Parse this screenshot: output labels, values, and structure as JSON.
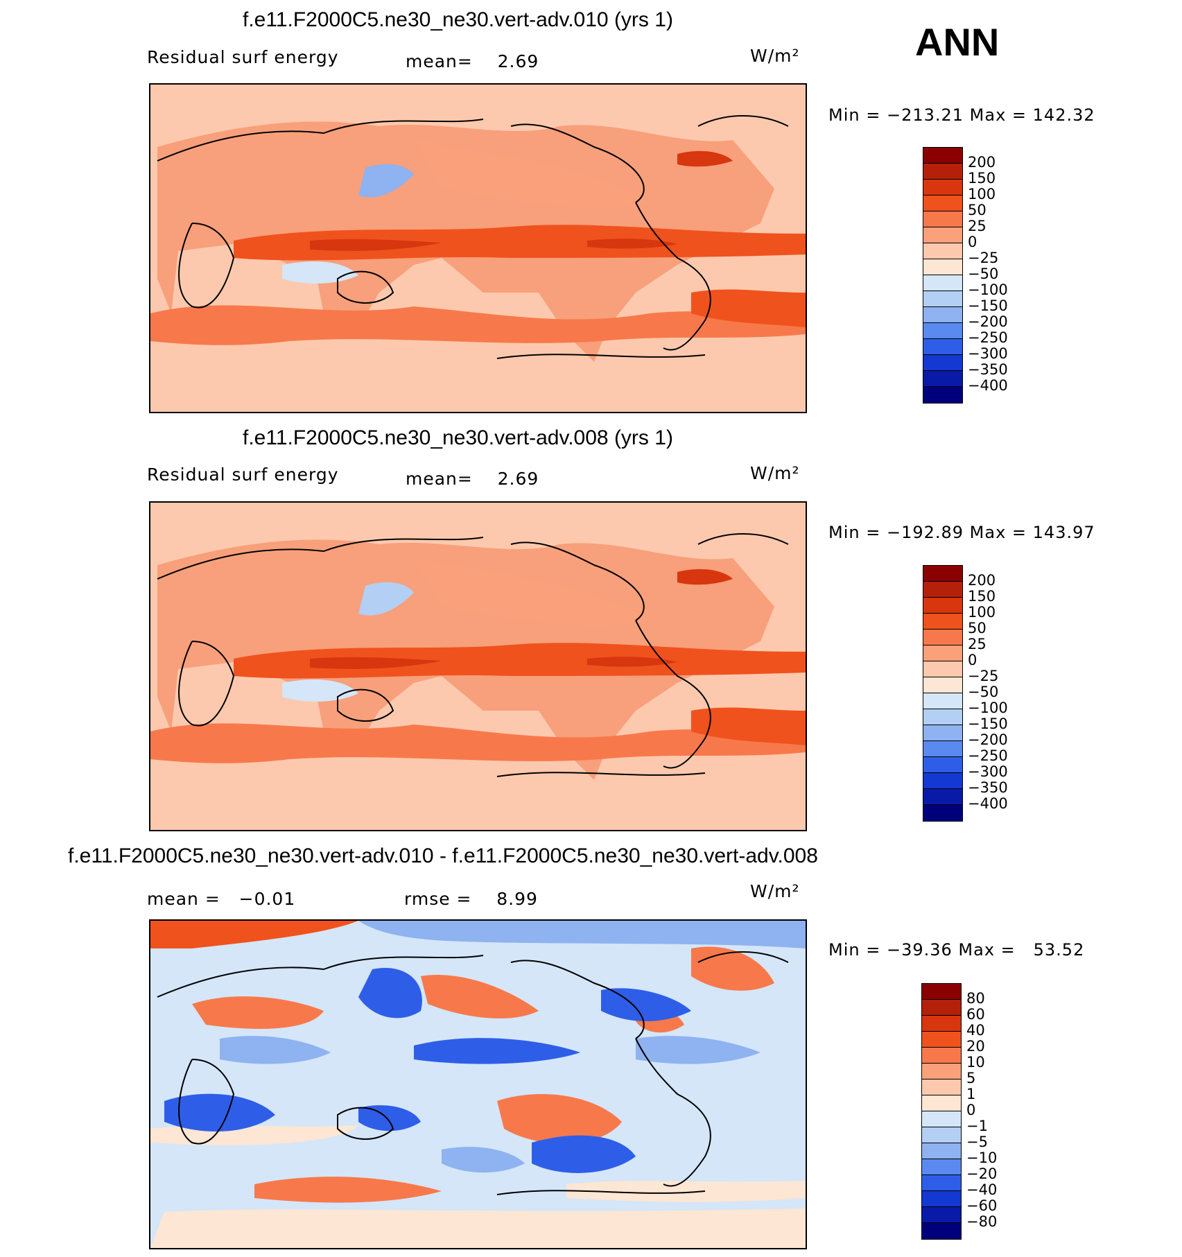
{
  "season": "ANN",
  "panels": [
    {
      "title": "f.e11.F2000C5.ne30_ne30.vert-adv.010 (yrs 1)",
      "label_left": "Residual surf energy",
      "stat_text": "mean=    2.69",
      "units": "W/m²",
      "minmax": "Min = −213.21 Max = 142.32",
      "colorbar": {
        "ticks": [
          "200",
          "150",
          "100",
          "50",
          "25",
          "0",
          "−25",
          "−50",
          "−100",
          "−150",
          "−200",
          "−250",
          "−300",
          "−350",
          "−400"
        ],
        "colors": [
          "#8b0000",
          "#b5200b",
          "#d8360f",
          "#f0521d",
          "#f7794b",
          "#faa07b",
          "#fcc9ae",
          "#fde6d3",
          "#d4e6f8",
          "#b3cff4",
          "#8fb2f0",
          "#5a8af0",
          "#2e5ee8",
          "#1438d2",
          "#0a1aa8",
          "#00007d"
        ]
      }
    },
    {
      "title": "f.e11.F2000C5.ne30_ne30.vert-adv.008 (yrs 1)",
      "label_left": "Residual surf energy",
      "stat_text": "mean=    2.69",
      "units": "W/m²",
      "minmax": "Min = −192.89 Max = 143.97",
      "colorbar": {
        "ticks": [
          "200",
          "150",
          "100",
          "50",
          "25",
          "0",
          "−25",
          "−50",
          "−100",
          "−150",
          "−200",
          "−250",
          "−300",
          "−350",
          "−400"
        ],
        "colors": [
          "#8b0000",
          "#b5200b",
          "#d8360f",
          "#f0521d",
          "#f7794b",
          "#faa07b",
          "#fcc9ae",
          "#fde6d3",
          "#d4e6f8",
          "#b3cff4",
          "#8fb2f0",
          "#5a8af0",
          "#2e5ee8",
          "#1438d2",
          "#0a1aa8",
          "#00007d"
        ]
      }
    },
    {
      "title": "f.e11.F2000C5.ne30_ne30.vert-adv.010 - f.e11.F2000C5.ne30_ne30.vert-adv.008",
      "label_left": "mean =   −0.01",
      "stat_text": "rmse =    8.99",
      "units": "W/m²",
      "minmax": "Min = −39.36 Max =   53.52",
      "colorbar": {
        "ticks": [
          "80",
          "60",
          "40",
          "20",
          "10",
          "5",
          "1",
          "0",
          "−1",
          "−5",
          "−10",
          "−20",
          "−40",
          "−60",
          "−80"
        ],
        "colors": [
          "#8b0000",
          "#b5200b",
          "#d8360f",
          "#f0521d",
          "#f7794b",
          "#faa07b",
          "#fcc9ae",
          "#fde6d3",
          "#d4e6f8",
          "#b3cff4",
          "#8fb2f0",
          "#5a8af0",
          "#2e5ee8",
          "#1438d2",
          "#0a1aa8",
          "#00007d"
        ]
      }
    }
  ]
}
